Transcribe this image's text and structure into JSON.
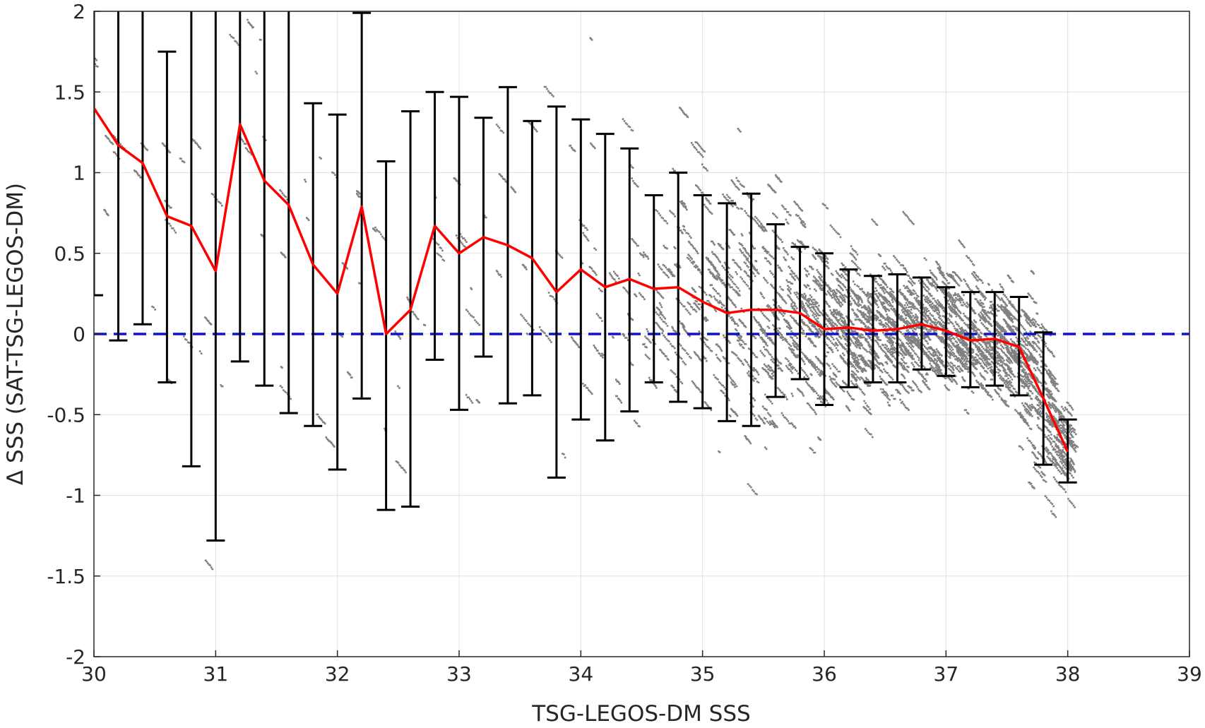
{
  "chart_data": {
    "type": "scatter",
    "xlabel": "TSG-LEGOS-DM SSS",
    "ylabel": "Δ SSS (SAT-TSG-LEGOS-DM)",
    "xlim": [
      30,
      39
    ],
    "ylim": [
      -2,
      2
    ],
    "xticks": [
      30,
      31,
      32,
      33,
      34,
      35,
      36,
      37,
      38,
      39
    ],
    "yticks": [
      -2,
      -1.5,
      -1,
      -0.5,
      0,
      0.5,
      1,
      1.5,
      2
    ],
    "grid": true,
    "reference_line": {
      "y": 0,
      "style": "dashed",
      "color": "#1010d0"
    },
    "scatter_color": "#808080",
    "mean_color": "#ff0000",
    "errorbar_color": "#000000",
    "mean_curve": [
      {
        "x": 30.0,
        "y": 1.4
      },
      {
        "x": 30.2,
        "y": 1.17
      },
      {
        "x": 30.4,
        "y": 1.06
      },
      {
        "x": 30.6,
        "y": 0.73
      },
      {
        "x": 30.8,
        "y": 0.67
      },
      {
        "x": 31.0,
        "y": 0.39
      },
      {
        "x": 31.2,
        "y": 1.3
      },
      {
        "x": 31.4,
        "y": 0.95
      },
      {
        "x": 31.6,
        "y": 0.8
      },
      {
        "x": 31.8,
        "y": 0.43
      },
      {
        "x": 32.0,
        "y": 0.25
      },
      {
        "x": 32.2,
        "y": 0.79
      },
      {
        "x": 32.4,
        "y": 0.0
      },
      {
        "x": 32.6,
        "y": 0.15
      },
      {
        "x": 32.8,
        "y": 0.67
      },
      {
        "x": 33.0,
        "y": 0.5
      },
      {
        "x": 33.2,
        "y": 0.6
      },
      {
        "x": 33.4,
        "y": 0.55
      },
      {
        "x": 33.6,
        "y": 0.47
      },
      {
        "x": 33.8,
        "y": 0.26
      },
      {
        "x": 34.0,
        "y": 0.4
      },
      {
        "x": 34.2,
        "y": 0.29
      },
      {
        "x": 34.4,
        "y": 0.34
      },
      {
        "x": 34.6,
        "y": 0.28
      },
      {
        "x": 34.8,
        "y": 0.29
      },
      {
        "x": 35.0,
        "y": 0.2
      },
      {
        "x": 35.2,
        "y": 0.13
      },
      {
        "x": 35.4,
        "y": 0.15
      },
      {
        "x": 35.6,
        "y": 0.15
      },
      {
        "x": 35.8,
        "y": 0.13
      },
      {
        "x": 36.0,
        "y": 0.03
      },
      {
        "x": 36.2,
        "y": 0.04
      },
      {
        "x": 36.4,
        "y": 0.02
      },
      {
        "x": 36.6,
        "y": 0.03
      },
      {
        "x": 36.8,
        "y": 0.06
      },
      {
        "x": 37.0,
        "y": 0.02
      },
      {
        "x": 37.2,
        "y": -0.04
      },
      {
        "x": 37.4,
        "y": -0.03
      },
      {
        "x": 37.6,
        "y": -0.08
      },
      {
        "x": 37.8,
        "y": -0.4
      },
      {
        "x": 38.0,
        "y": -0.73
      }
    ],
    "error_bars": [
      {
        "x": 30.0,
        "low": 0.24,
        "high": 2.2
      },
      {
        "x": 30.2,
        "low": -0.04,
        "high": 2.2
      },
      {
        "x": 30.4,
        "low": 0.06,
        "high": 2.2
      },
      {
        "x": 30.6,
        "low": -0.3,
        "high": 1.75
      },
      {
        "x": 30.8,
        "low": -0.82,
        "high": 2.2
      },
      {
        "x": 31.0,
        "low": -1.28,
        "high": 2.2
      },
      {
        "x": 31.2,
        "low": -0.17,
        "high": 2.2
      },
      {
        "x": 31.4,
        "low": -0.32,
        "high": 2.2
      },
      {
        "x": 31.6,
        "low": -0.49,
        "high": 2.2
      },
      {
        "x": 31.8,
        "low": -0.57,
        "high": 1.43
      },
      {
        "x": 32.0,
        "low": -0.84,
        "high": 1.36
      },
      {
        "x": 32.2,
        "low": -0.4,
        "high": 1.99
      },
      {
        "x": 32.4,
        "low": -1.09,
        "high": 1.07
      },
      {
        "x": 32.6,
        "low": -1.07,
        "high": 1.38
      },
      {
        "x": 32.8,
        "low": -0.16,
        "high": 1.5
      },
      {
        "x": 33.0,
        "low": -0.47,
        "high": 1.47
      },
      {
        "x": 33.2,
        "low": -0.14,
        "high": 1.34
      },
      {
        "x": 33.4,
        "low": -0.43,
        "high": 1.53
      },
      {
        "x": 33.6,
        "low": -0.38,
        "high": 1.32
      },
      {
        "x": 33.8,
        "low": -0.89,
        "high": 1.41
      },
      {
        "x": 34.0,
        "low": -0.53,
        "high": 1.33
      },
      {
        "x": 34.2,
        "low": -0.66,
        "high": 1.24
      },
      {
        "x": 34.4,
        "low": -0.48,
        "high": 1.15
      },
      {
        "x": 34.6,
        "low": -0.3,
        "high": 0.86
      },
      {
        "x": 34.8,
        "low": -0.42,
        "high": 1.0
      },
      {
        "x": 35.0,
        "low": -0.46,
        "high": 0.86
      },
      {
        "x": 35.2,
        "low": -0.54,
        "high": 0.81
      },
      {
        "x": 35.4,
        "low": -0.57,
        "high": 0.87
      },
      {
        "x": 35.6,
        "low": -0.39,
        "high": 0.68
      },
      {
        "x": 35.8,
        "low": -0.28,
        "high": 0.54
      },
      {
        "x": 36.0,
        "low": -0.44,
        "high": 0.5
      },
      {
        "x": 36.2,
        "low": -0.33,
        "high": 0.4
      },
      {
        "x": 36.4,
        "low": -0.3,
        "high": 0.36
      },
      {
        "x": 36.6,
        "low": -0.3,
        "high": 0.37
      },
      {
        "x": 36.8,
        "low": -0.22,
        "high": 0.35
      },
      {
        "x": 37.0,
        "low": -0.26,
        "high": 0.29
      },
      {
        "x": 37.2,
        "low": -0.33,
        "high": 0.26
      },
      {
        "x": 37.4,
        "low": -0.32,
        "high": 0.26
      },
      {
        "x": 37.6,
        "low": -0.38,
        "high": 0.23
      },
      {
        "x": 37.8,
        "low": -0.81,
        "high": 0.01
      },
      {
        "x": 38.0,
        "low": -0.92,
        "high": -0.53
      }
    ]
  }
}
